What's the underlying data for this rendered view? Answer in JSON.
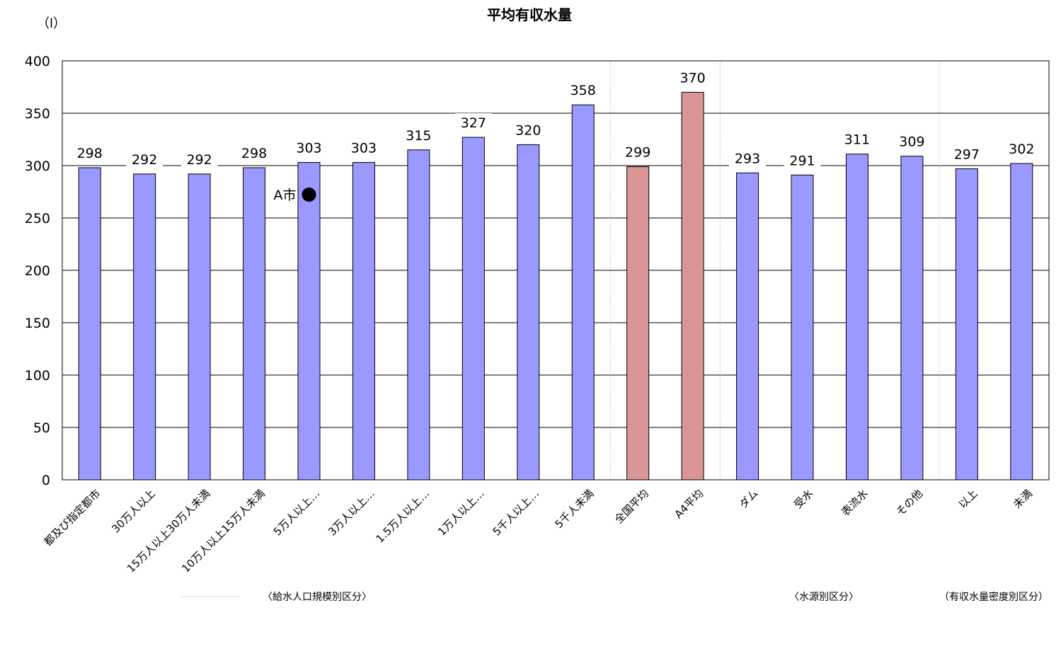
{
  "chart_data": {
    "type": "bar",
    "title": "平均有収水量",
    "unit_label": "（l）",
    "ylim": [
      0,
      400
    ],
    "yticks": [
      0,
      50,
      100,
      150,
      200,
      250,
      300,
      350,
      400
    ],
    "grid": true,
    "categories": [
      "都及び指定都市",
      "30万人以上",
      "15万人以上30万人未満",
      "10万人以上15万人未満",
      "5万人以上…",
      "3万人以上…",
      "1.5万人以上…",
      "1万人以上…",
      "5千人以上…",
      "5千人未満",
      "全国平均",
      "A4平均",
      "ダム",
      "受水",
      "表流水",
      "その他",
      "以上",
      "未満"
    ],
    "values": [
      298,
      292,
      292,
      298,
      303,
      303,
      315,
      327,
      320,
      358,
      299,
      370,
      293,
      291,
      311,
      309,
      297,
      302
    ],
    "bar_colors": [
      "#9999ff",
      "#9999ff",
      "#9999ff",
      "#9999ff",
      "#9999ff",
      "#9999ff",
      "#9999ff",
      "#9999ff",
      "#9999ff",
      "#9999ff",
      "#d99694",
      "#d99694",
      "#9999ff",
      "#9999ff",
      "#9999ff",
      "#9999ff",
      "#9999ff",
      "#9999ff"
    ],
    "group_labels": [
      "〈給水人口規模別区分〉",
      "〈水源別区分〉",
      "（有収水量密度別区分）"
    ],
    "annotation": {
      "text": "A市",
      "category_index": 4,
      "value": 275
    }
  }
}
